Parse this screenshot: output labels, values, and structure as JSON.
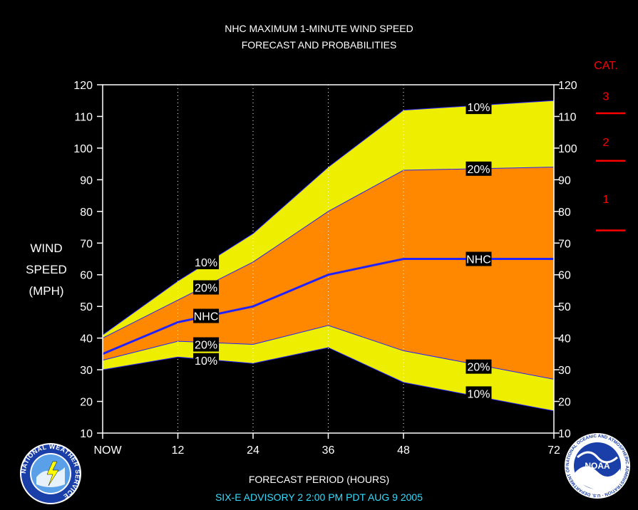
{
  "title_line1": "NHC MAXIMUM 1-MINUTE WIND SPEED",
  "title_line2": "FORECAST AND PROBABILITIES",
  "ylabel_lines": [
    "WIND",
    "SPEED",
    "(MPH)"
  ],
  "xlabel": "FORECAST PERIOD (HOURS)",
  "advisory": "SIX-E   ADVISORY  2  2:00  PM  PDT  AUG  9  2005",
  "logos": {
    "left": "NATIONAL WEATHER SERVICE",
    "right_center": "NOAA",
    "right_ring": "NATIONAL OCEANIC AND ATMOSPHERIC ADMINISTRATION · U.S. DEPARTMENT OF COMMERCE"
  },
  "colors": {
    "band_10": "#eeee00",
    "band_20": "#ff8800",
    "nhc_line": "#2222ff",
    "category": "#ff0000",
    "background": "#000000"
  },
  "chart_data": {
    "type": "area",
    "title": "NHC MAXIMUM 1-MINUTE WIND SPEED FORECAST AND PROBABILITIES",
    "xlabel": "FORECAST PERIOD (HOURS)",
    "ylabel": "WIND SPEED (MPH)",
    "xlim": [
      0,
      72
    ],
    "ylim": [
      10,
      120
    ],
    "x_ticks": [
      {
        "value": 0,
        "label": "NOW"
      },
      {
        "value": 12,
        "label": "12"
      },
      {
        "value": 24,
        "label": "24"
      },
      {
        "value": 36,
        "label": "36"
      },
      {
        "value": 48,
        "label": "48"
      },
      {
        "value": 72,
        "label": "72"
      }
    ],
    "y_ticks": [
      10,
      20,
      30,
      40,
      50,
      60,
      70,
      80,
      90,
      100,
      110,
      120
    ],
    "x": [
      0,
      12,
      24,
      36,
      48,
      72
    ],
    "series": [
      {
        "name": "10%",
        "values": [
          41,
          58,
          73,
          94,
          112,
          115
        ]
      },
      {
        "name": "20%",
        "values": [
          40,
          52,
          64,
          80,
          93,
          94
        ]
      },
      {
        "name": "NHC",
        "values": [
          35,
          45,
          50,
          60,
          65,
          65
        ]
      },
      {
        "name": "20%",
        "values": [
          33,
          39,
          38,
          44,
          36,
          27
        ]
      },
      {
        "name": "10%",
        "values": [
          30,
          34,
          32,
          37,
          26,
          17
        ]
      }
    ],
    "band_labels": [
      {
        "text": "10%",
        "x": 16.5,
        "y": 64
      },
      {
        "text": "20%",
        "x": 16.5,
        "y": 56
      },
      {
        "text": "NHC",
        "x": 16.5,
        "y": 47
      },
      {
        "text": "20%",
        "x": 16.5,
        "y": 38
      },
      {
        "text": "10%",
        "x": 16.5,
        "y": 33
      },
      {
        "text": "10%",
        "x": 60,
        "y": 113
      },
      {
        "text": "20%",
        "x": 60,
        "y": 93.5
      },
      {
        "text": "NHC",
        "x": 60,
        "y": 65
      },
      {
        "text": "20%",
        "x": 60,
        "y": 31
      },
      {
        "text": "10%",
        "x": 60,
        "y": 22.5
      }
    ],
    "category_title": "CAT.",
    "categories": [
      {
        "label": "3",
        "y": 116.5
      },
      {
        "label": "2",
        "y": 102
      },
      {
        "label": "1",
        "y": 84
      }
    ],
    "category_thresholds": [
      111,
      96,
      74
    ],
    "grid": "vertical dotted lines at 12, 24, 36, 48 hours"
  }
}
